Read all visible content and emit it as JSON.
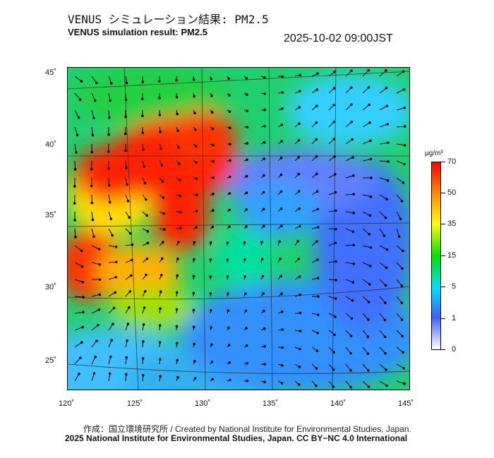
{
  "title_ja": "VENUS シミュレーション結果: PM2.5",
  "title_en": "VENUS simulation result: PM2.5",
  "timestamp": "2025-10-02 09:00JST",
  "map": {
    "lon_labels": [
      "120˚",
      "125˚",
      "130˚",
      "135˚",
      "140˚",
      "145˚"
    ],
    "lat_labels": [
      "45˚",
      "40˚",
      "35˚",
      "30˚",
      "25˚"
    ]
  },
  "colorbar": {
    "unit": "μg/m³",
    "ticks": [
      "70",
      "50",
      "35",
      "15",
      "5",
      "1",
      "0"
    ],
    "colors": [
      "#ffffff",
      "#4060ff",
      "#00e0ff",
      "#00e000",
      "#ffff00",
      "#ff9000",
      "#ff0000"
    ]
  },
  "footer": {
    "credit": "作成：国立環境研究所 / Created by National Institute for Environmental Studies, Japan.",
    "license": "2025 National Institute for Environmental Studies, Japan. CC BY−NC 4.0 International"
  }
}
